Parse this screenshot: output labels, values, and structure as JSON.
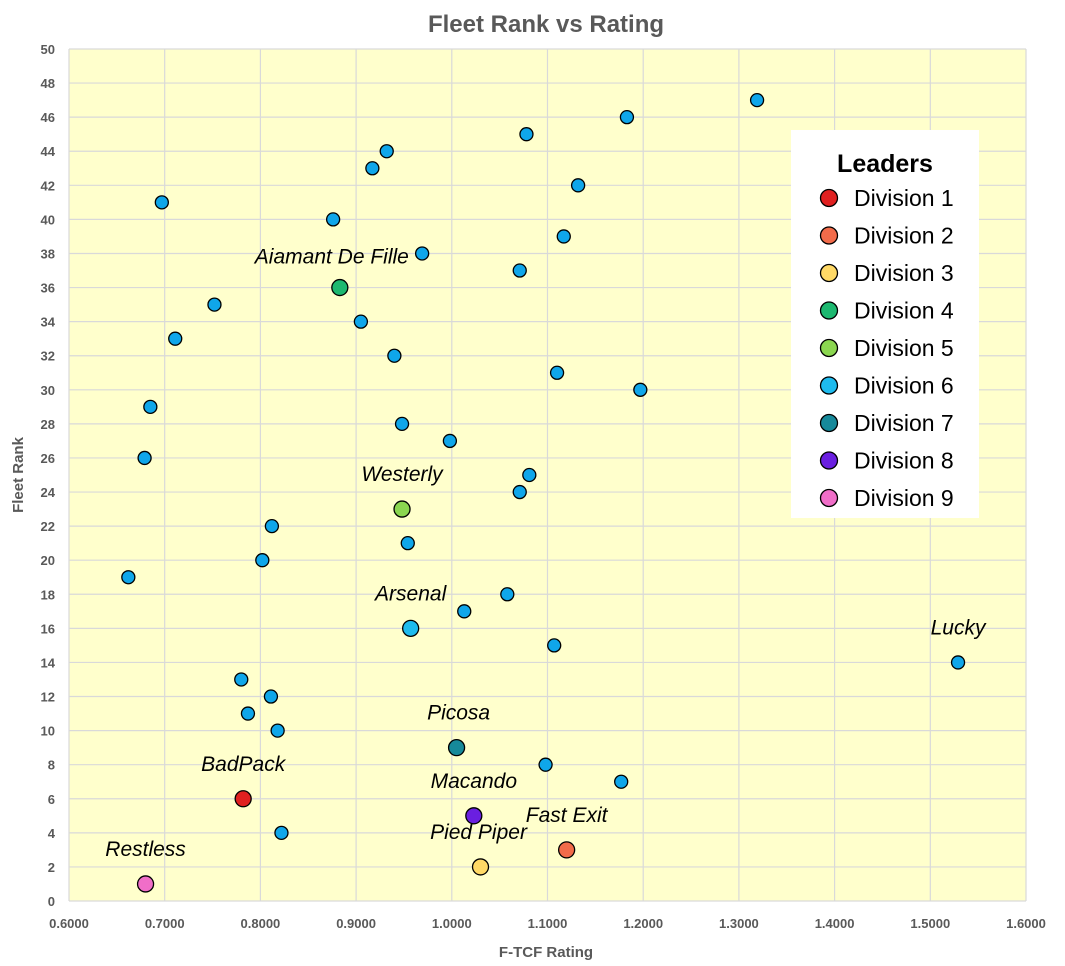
{
  "chart_data": {
    "type": "scatter",
    "title": "Fleet Rank vs Rating",
    "xlabel": "F-TCF Rating",
    "ylabel": "Fleet Rank",
    "xlim": [
      0.6,
      1.6
    ],
    "ylim": [
      0,
      50
    ],
    "x_ticks": [
      "0.6000",
      "0.7000",
      "0.8000",
      "0.9000",
      "1.0000",
      "1.1000",
      "1.2000",
      "1.3000",
      "1.4000",
      "1.5000",
      "1.6000"
    ],
    "y_ticks": [
      "0",
      "2",
      "4",
      "6",
      "8",
      "10",
      "12",
      "14",
      "16",
      "18",
      "20",
      "22",
      "24",
      "26",
      "28",
      "30",
      "32",
      "34",
      "36",
      "38",
      "40",
      "42",
      "44",
      "46",
      "48",
      "50"
    ],
    "grid": true,
    "plot_background": "#FFFFCC",
    "legend": {
      "title": "Leaders",
      "placement": "top-right",
      "entries": [
        {
          "name": "Division 1",
          "color": "#E02020"
        },
        {
          "name": "Division 2",
          "color": "#F26B4A"
        },
        {
          "name": "Division 3",
          "color": "#FFD966"
        },
        {
          "name": "Division 4",
          "color": "#1DB870"
        },
        {
          "name": "Division 5",
          "color": "#8BD650"
        },
        {
          "name": "Division 6",
          "color": "#1EBBEE"
        },
        {
          "name": "Division 7",
          "color": "#16899A"
        },
        {
          "name": "Division 8",
          "color": "#6A1FE0"
        },
        {
          "name": "Division 9",
          "color": "#F06EC8"
        }
      ]
    },
    "series": [
      {
        "color": "#0FA6EA",
        "points": [
          {
            "x": 1.319,
            "y": 47
          },
          {
            "x": 1.183,
            "y": 46
          },
          {
            "x": 1.078,
            "y": 45
          },
          {
            "x": 0.932,
            "y": 44
          },
          {
            "x": 0.917,
            "y": 43
          },
          {
            "x": 1.132,
            "y": 42
          },
          {
            "x": 0.697,
            "y": 41
          },
          {
            "x": 0.876,
            "y": 40
          },
          {
            "x": 1.117,
            "y": 39
          },
          {
            "x": 0.969,
            "y": 38
          },
          {
            "x": 1.071,
            "y": 37
          },
          {
            "x": 0.752,
            "y": 35
          },
          {
            "x": 0.905,
            "y": 34
          },
          {
            "x": 0.711,
            "y": 33
          },
          {
            "x": 0.94,
            "y": 32
          },
          {
            "x": 1.11,
            "y": 31
          },
          {
            "x": 1.197,
            "y": 30
          },
          {
            "x": 0.685,
            "y": 29
          },
          {
            "x": 0.948,
            "y": 28
          },
          {
            "x": 0.998,
            "y": 27
          },
          {
            "x": 0.679,
            "y": 26
          },
          {
            "x": 1.081,
            "y": 25
          },
          {
            "x": 1.071,
            "y": 24
          },
          {
            "x": 0.812,
            "y": 22
          },
          {
            "x": 0.954,
            "y": 21
          },
          {
            "x": 0.802,
            "y": 20
          },
          {
            "x": 0.662,
            "y": 19
          },
          {
            "x": 1.058,
            "y": 18
          },
          {
            "x": 1.013,
            "y": 17
          },
          {
            "x": 1.107,
            "y": 15
          },
          {
            "x": 1.529,
            "y": 14
          },
          {
            "x": 0.78,
            "y": 13
          },
          {
            "x": 0.811,
            "y": 12
          },
          {
            "x": 0.787,
            "y": 11
          },
          {
            "x": 0.818,
            "y": 10
          },
          {
            "x": 1.098,
            "y": 8
          },
          {
            "x": 1.177,
            "y": 7
          },
          {
            "x": 0.822,
            "y": 4
          }
        ]
      }
    ],
    "highlighted": [
      {
        "label": "Aiamant De Fille",
        "x": 0.883,
        "y": 36,
        "color": "#1DB870",
        "big": true
      },
      {
        "label": "Westerly",
        "x": 0.948,
        "y": 23,
        "color": "#8BD650",
        "big": true
      },
      {
        "label": "Arsenal",
        "x": 0.957,
        "y": 16,
        "color": "#1EBBEE",
        "big": true
      },
      {
        "label": "Lucky",
        "x": 1.529,
        "y": 14,
        "color": "",
        "big": false
      },
      {
        "label": "Picosa",
        "x": 1.005,
        "y": 9,
        "color": "#16899A",
        "big": true
      },
      {
        "label": "BadPack",
        "x": 0.782,
        "y": 6,
        "color": "#E02020",
        "big": true
      },
      {
        "label": "Macando",
        "x": 1.023,
        "y": 5,
        "color": "#6A1FE0",
        "big": true
      },
      {
        "label": "Fast Exit",
        "x": 1.12,
        "y": 3,
        "color": "#F26B4A",
        "big": true
      },
      {
        "label": "Pied Piper",
        "x": 1.03,
        "y": 2,
        "color": "#FFD966",
        "big": true
      },
      {
        "label": "Restless",
        "x": 0.68,
        "y": 1,
        "color": "#F06EC8",
        "big": true
      }
    ]
  }
}
